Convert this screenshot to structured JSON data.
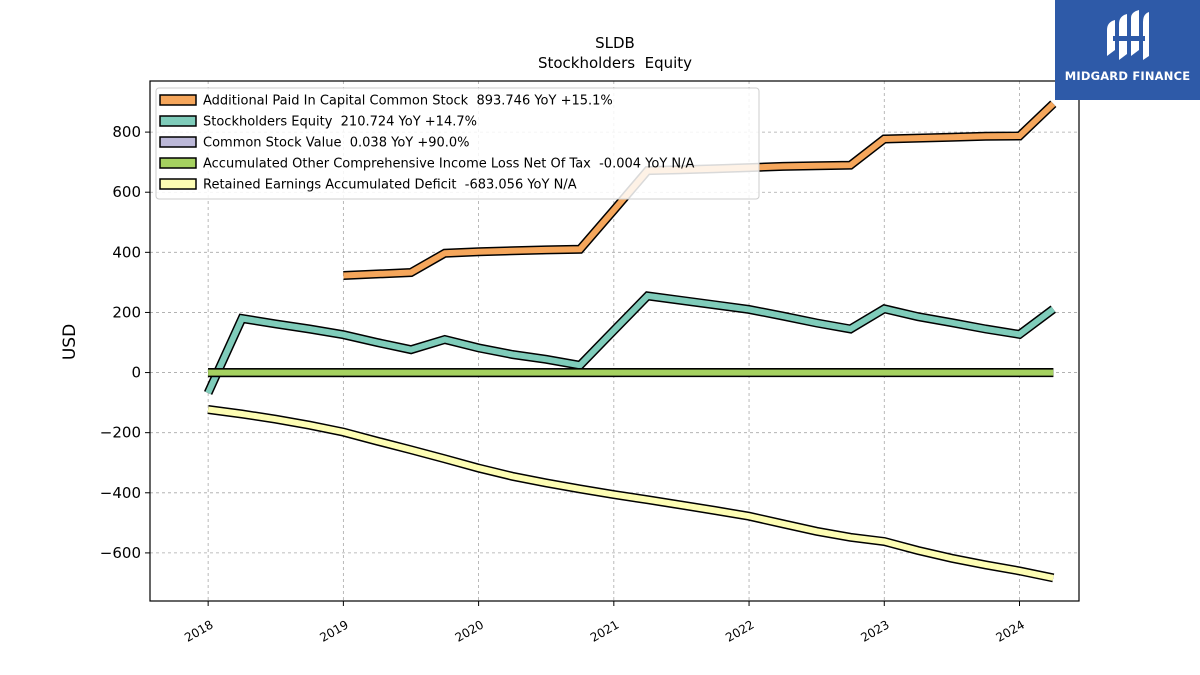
{
  "chart_data": {
    "type": "line",
    "title": "SLDB",
    "subtitle": "Stockholders  Equity",
    "ylabel": "USD",
    "xlabel": "",
    "ylim": [
      -760,
      970
    ],
    "xlim": [
      2017.57,
      2024.44
    ],
    "yticks": [
      -600,
      -400,
      -200,
      0,
      200,
      400,
      600,
      800
    ],
    "ytick_labels": [
      "−600",
      "−400",
      "−200",
      "0",
      "200",
      "400",
      "600",
      "800"
    ],
    "xticks": [
      2018,
      2019,
      2020,
      2021,
      2022,
      2023,
      2024
    ],
    "xtick_labels": [
      "2018",
      "2019",
      "2020",
      "2021",
      "2022",
      "2023",
      "2024"
    ],
    "grid": true,
    "legend_position": "top-left",
    "series": [
      {
        "name": "Additional Paid In Capital Common Stock  893.746 YoY +15.1%",
        "color": "#f5a65b",
        "points": [
          [
            2019.0,
            323
          ],
          [
            2019.5,
            333
          ],
          [
            2019.75,
            397
          ],
          [
            2020.0,
            402
          ],
          [
            2020.25,
            405
          ],
          [
            2020.5,
            408
          ],
          [
            2020.75,
            410
          ],
          [
            2021.0,
            540
          ],
          [
            2021.25,
            672
          ],
          [
            2021.5,
            675
          ],
          [
            2021.75,
            678
          ],
          [
            2022.0,
            682
          ],
          [
            2022.25,
            686
          ],
          [
            2022.5,
            688
          ],
          [
            2022.75,
            690
          ],
          [
            2023.0,
            777
          ],
          [
            2023.25,
            780
          ],
          [
            2023.5,
            783
          ],
          [
            2023.75,
            786
          ],
          [
            2024.0,
            787
          ],
          [
            2024.25,
            894
          ]
        ]
      },
      {
        "name": "Stockholders Equity  210.724 YoY +14.7%",
        "color": "#7fccba",
        "points": [
          [
            2018.0,
            -68
          ],
          [
            2018.25,
            180
          ],
          [
            2018.5,
            162
          ],
          [
            2018.75,
            145
          ],
          [
            2019.0,
            126
          ],
          [
            2019.25,
            100
          ],
          [
            2019.5,
            76
          ],
          [
            2019.75,
            110
          ],
          [
            2020.0,
            82
          ],
          [
            2020.25,
            60
          ],
          [
            2020.5,
            44
          ],
          [
            2020.75,
            24
          ],
          [
            2021.0,
            140
          ],
          [
            2021.25,
            255
          ],
          [
            2021.5,
            240
          ],
          [
            2021.75,
            225
          ],
          [
            2022.0,
            210
          ],
          [
            2022.25,
            188
          ],
          [
            2022.5,
            165
          ],
          [
            2022.75,
            145
          ],
          [
            2023.0,
            212
          ],
          [
            2023.25,
            186
          ],
          [
            2023.5,
            166
          ],
          [
            2023.75,
            145
          ],
          [
            2024.0,
            127
          ],
          [
            2024.25,
            211
          ]
        ]
      },
      {
        "name": "Common Stock Value  0.038 YoY +90.0%",
        "color": "#bcb8d8",
        "points": [
          [
            2018.0,
            0.02
          ],
          [
            2024.25,
            0.038
          ]
        ]
      },
      {
        "name": "Accumulated Other Comprehensive Income Loss Net Of Tax  -0.004 YoY N/A",
        "color": "#a5d160",
        "points": [
          [
            2018.0,
            0
          ],
          [
            2024.25,
            -0.004
          ]
        ]
      },
      {
        "name": "Retained Earnings Accumulated Deficit  -683.056 YoY N/A",
        "color": "#fdfdb4",
        "points": [
          [
            2018.0,
            -123
          ],
          [
            2018.25,
            -138
          ],
          [
            2018.5,
            -155
          ],
          [
            2018.75,
            -175
          ],
          [
            2019.0,
            -198
          ],
          [
            2019.25,
            -228
          ],
          [
            2019.5,
            -257
          ],
          [
            2019.75,
            -287
          ],
          [
            2020.0,
            -318
          ],
          [
            2020.25,
            -345
          ],
          [
            2020.5,
            -367
          ],
          [
            2020.75,
            -387
          ],
          [
            2021.0,
            -406
          ],
          [
            2021.25,
            -423
          ],
          [
            2021.5,
            -441
          ],
          [
            2021.75,
            -459
          ],
          [
            2022.0,
            -478
          ],
          [
            2022.25,
            -503
          ],
          [
            2022.5,
            -528
          ],
          [
            2022.75,
            -548
          ],
          [
            2023.0,
            -562
          ],
          [
            2023.25,
            -592
          ],
          [
            2023.5,
            -618
          ],
          [
            2023.75,
            -640
          ],
          [
            2024.0,
            -660
          ],
          [
            2024.25,
            -683
          ]
        ]
      }
    ]
  },
  "logo": {
    "text": "MIDGARD FINANCE",
    "bg_color": "#2e5aa8"
  }
}
